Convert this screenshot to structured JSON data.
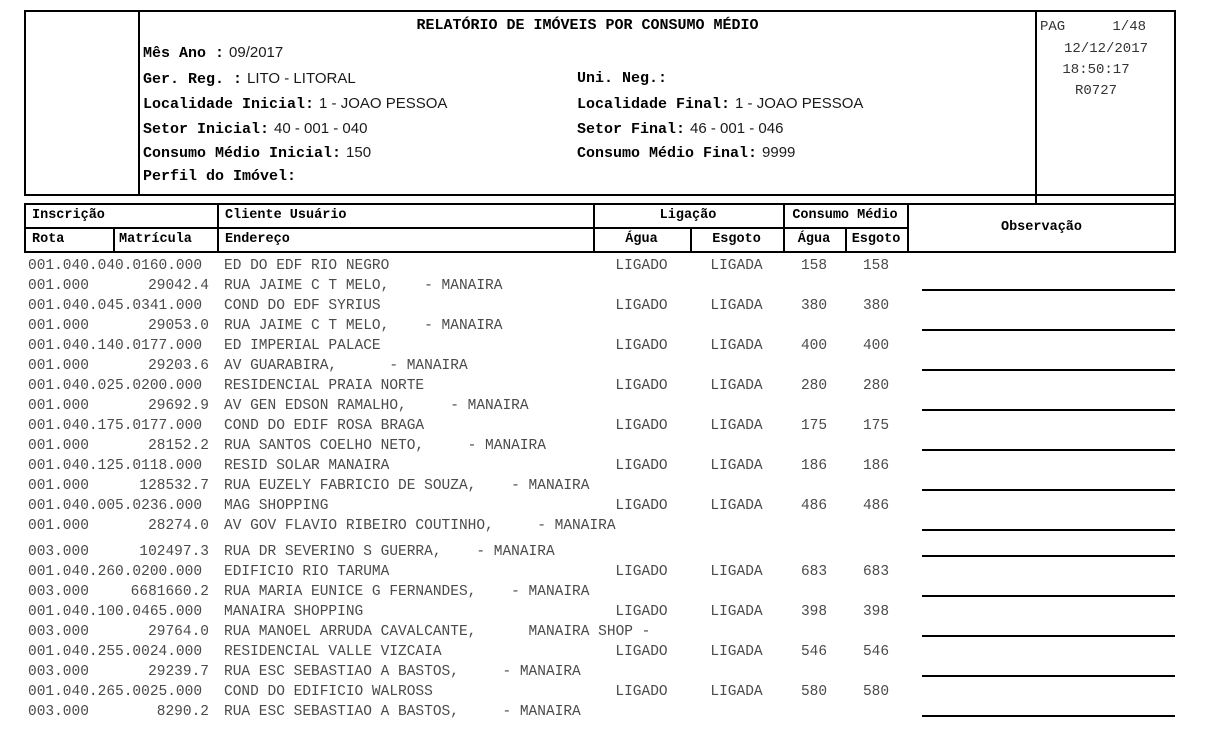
{
  "title": "RELATÓRIO DE IMÓVEIS POR CONSUMO MÉDIO",
  "page_info": {
    "pag_label": "PAG",
    "page": "1/48",
    "date": "12/12/2017",
    "time": "18:50:17",
    "report_code": "R0727"
  },
  "filters": {
    "mes_ano_label": "Mês Ano :",
    "mes_ano": "09/2017",
    "ger_reg_label": "Ger. Reg. :",
    "ger_reg": "LITO - LITORAL",
    "uni_neg_label": "Uni. Neg.:",
    "uni_neg": "",
    "localidade_inicial_label": "Localidade Inicial:",
    "localidade_inicial": "1 - JOAO PESSOA",
    "localidade_final_label": "Localidade Final:",
    "localidade_final": "1 - JOAO PESSOA",
    "setor_inicial_label": "Setor Inicial:",
    "setor_inicial": "40 - 001 - 040",
    "setor_final_label": "Setor Final:",
    "setor_final": "46 - 001 - 046",
    "consumo_inicial_label": "Consumo Médio Inicial:",
    "consumo_inicial": "150",
    "consumo_final_label": "Consumo Médio Final:",
    "consumo_final": "9999",
    "perfil_label": "Perfil do Imóvel:",
    "perfil": ""
  },
  "table": {
    "header": {
      "inscricao": "Inscrição",
      "cliente_usuario": "Cliente Usuário",
      "ligacao": "Ligação",
      "consumo_medio": "Consumo Médio",
      "observacao": "Observação",
      "rota": "Rota",
      "matricula": "Matrícula",
      "endereco": "Endereço",
      "ligacao_agua": "Água",
      "ligacao_esgoto": "Esgoto",
      "consumo_agua": "Água",
      "consumo_esgoto": "Esgoto"
    },
    "rows": [
      {
        "inscricao": "001.040.040.0160.000",
        "cliente": "ED DO EDF RIO NEGRO",
        "ligacao_agua": "LIGADO",
        "ligacao_esgoto": "LIGADA",
        "consumo_agua": "158",
        "consumo_esgoto": "158",
        "rota": "001.000",
        "matricula": "29042.4",
        "endereco": "RUA JAIME C T MELO,    - MANAIRA"
      },
      {
        "inscricao": "001.040.045.0341.000",
        "cliente": "COND DO EDF SYRIUS",
        "ligacao_agua": "LIGADO",
        "ligacao_esgoto": "LIGADA",
        "consumo_agua": "380",
        "consumo_esgoto": "380",
        "rota": "001.000",
        "matricula": "29053.0",
        "endereco": "RUA JAIME C T MELO,    - MANAIRA"
      },
      {
        "inscricao": "001.040.140.0177.000",
        "cliente": "ED IMPERIAL PALACE",
        "ligacao_agua": "LIGADO",
        "ligacao_esgoto": "LIGADA",
        "consumo_agua": "400",
        "consumo_esgoto": "400",
        "rota": "001.000",
        "matricula": "29203.6",
        "endereco": "AV GUARABIRA,      - MANAIRA"
      },
      {
        "inscricao": "001.040.025.0200.000",
        "cliente": "RESIDENCIAL PRAIA NORTE",
        "ligacao_agua": "LIGADO",
        "ligacao_esgoto": "LIGADA",
        "consumo_agua": "280",
        "consumo_esgoto": "280",
        "rota": "001.000",
        "matricula": "29692.9",
        "endereco": "AV GEN EDSON RAMALHO,     - MANAIRA"
      },
      {
        "inscricao": "001.040.175.0177.000",
        "cliente": "COND DO EDIF ROSA BRAGA",
        "ligacao_agua": "LIGADO",
        "ligacao_esgoto": "LIGADA",
        "consumo_agua": "175",
        "consumo_esgoto": "175",
        "rota": "001.000",
        "matricula": "28152.2",
        "endereco": "RUA SANTOS COELHO NETO,     - MANAIRA"
      },
      {
        "inscricao": "001.040.125.0118.000",
        "cliente": "RESID SOLAR MANAIRA",
        "ligacao_agua": "LIGADO",
        "ligacao_esgoto": "LIGADA",
        "consumo_agua": "186",
        "consumo_esgoto": "186",
        "rota": "001.000",
        "matricula": "128532.7",
        "endereco": "RUA EUZELY FABRICIO DE SOUZA,    - MANAIRA"
      },
      {
        "inscricao": "001.040.005.0236.000",
        "cliente": "MAG SHOPPING",
        "ligacao_agua": "LIGADO",
        "ligacao_esgoto": "LIGADA",
        "consumo_agua": "486",
        "consumo_esgoto": "486",
        "rota": "001.000",
        "matricula": "28274.0",
        "endereco": "AV GOV FLAVIO RIBEIRO COUTINHO,     - MANAIRA"
      },
      {
        "type": "address_only",
        "rota": "003.000",
        "matricula": "102497.3",
        "endereco": "RUA DR SEVERINO S GUERRA,    - MANAIRA"
      },
      {
        "inscricao": "001.040.260.0200.000",
        "cliente": "EDIFICIO RIO TARUMA",
        "ligacao_agua": "LIGADO",
        "ligacao_esgoto": "LIGADA",
        "consumo_agua": "683",
        "consumo_esgoto": "683",
        "rota": "003.000",
        "matricula": "6681660.2",
        "endereco": "RUA MARIA EUNICE G FERNANDES,    - MANAIRA"
      },
      {
        "inscricao": "001.040.100.0465.000",
        "cliente": "MANAIRA SHOPPING",
        "ligacao_agua": "LIGADO",
        "ligacao_esgoto": "LIGADA",
        "consumo_agua": "398",
        "consumo_esgoto": "398",
        "rota": "003.000",
        "matricula": "29764.0",
        "endereco": "RUA MANOEL ARRUDA CAVALCANTE,      MANAIRA SHOP -"
      },
      {
        "inscricao": "001.040.255.0024.000",
        "cliente": "RESIDENCIAL VALLE VIZCAIA",
        "ligacao_agua": "LIGADO",
        "ligacao_esgoto": "LIGADA",
        "consumo_agua": "546",
        "consumo_esgoto": "546",
        "rota": "003.000",
        "matricula": "29239.7",
        "endereco": "RUA ESC SEBASTIAO A BASTOS,     - MANAIRA"
      },
      {
        "inscricao": "001.040.265.0025.000",
        "cliente": "COND DO EDIFICIO WALROSS",
        "ligacao_agua": "LIGADO",
        "ligacao_esgoto": "LIGADA",
        "consumo_agua": "580",
        "consumo_esgoto": "580",
        "rota": "003.000",
        "matricula": "8290.2",
        "endereco": "RUA ESC SEBASTIAO A BASTOS,     - MANAIRA"
      }
    ]
  }
}
